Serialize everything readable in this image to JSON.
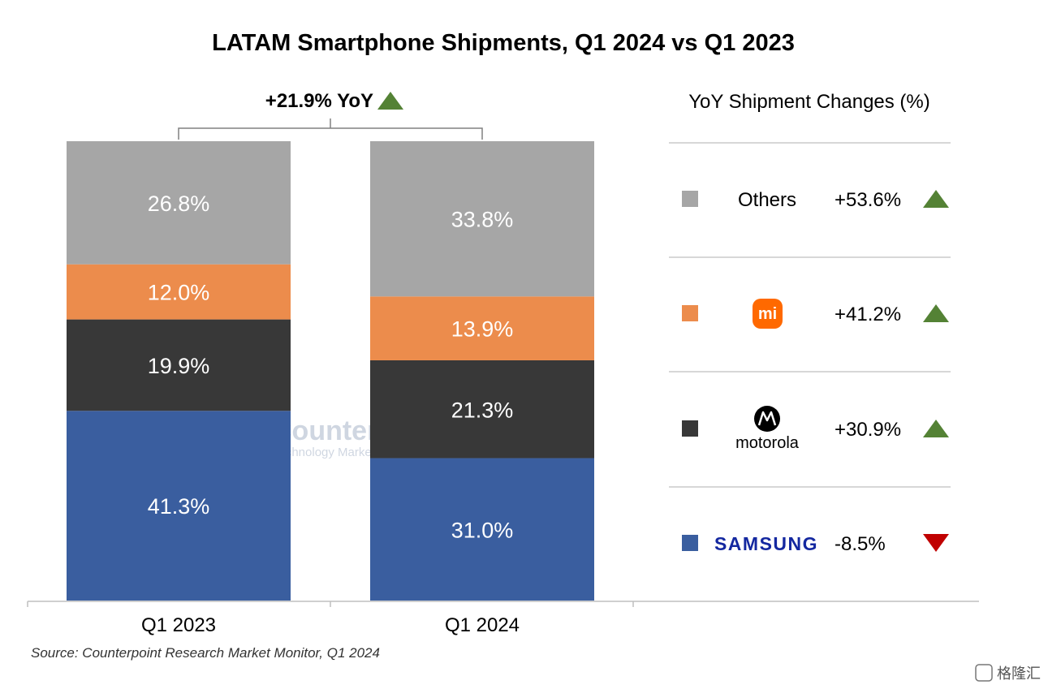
{
  "chart_data": {
    "type": "bar",
    "stacked": true,
    "percent_stacked": true,
    "title": "LATAM Smartphone Shipments, Q1 2024 vs Q1 2023",
    "categories": [
      "Q1 2023",
      "Q1 2024"
    ],
    "series": [
      {
        "name": "Samsung",
        "color": "#3a5e9f",
        "values": [
          41.3,
          31.0
        ],
        "labels": [
          "41.3%",
          "31.0%"
        ]
      },
      {
        "name": "Motorola",
        "color": "#383838",
        "values": [
          19.9,
          21.3
        ],
        "labels": [
          "19.9%",
          "21.3%"
        ]
      },
      {
        "name": "Xiaomi",
        "color": "#ec8c4c",
        "values": [
          12.0,
          13.9
        ],
        "labels": [
          "12.0%",
          "13.9%"
        ]
      },
      {
        "name": "Others",
        "color": "#a6a6a6",
        "values": [
          26.8,
          33.8
        ],
        "labels": [
          "26.8%",
          "33.8%"
        ]
      }
    ],
    "ylim": [
      0,
      100
    ],
    "xlabel": "",
    "ylabel": "",
    "yoy_total": "+21.9% YoY",
    "legend_title": "YoY Shipment Changes (%)",
    "legend": [
      {
        "name": "Others",
        "logo": "text",
        "color": "#a6a6a6",
        "change": "+53.6%",
        "direction": "up"
      },
      {
        "name": "Xiaomi",
        "logo": "mi",
        "logo_text": "mi",
        "color": "#ec8c4c",
        "change": "+41.2%",
        "direction": "up"
      },
      {
        "name": "Motorola",
        "logo": "motorola",
        "logo_text": "motorola",
        "color": "#383838",
        "change": "+30.9%",
        "direction": "up"
      },
      {
        "name": "Samsung",
        "logo": "samsung",
        "logo_text": "SAMSUNG",
        "color": "#3a5e9f",
        "change": "-8.5%",
        "direction": "down"
      }
    ],
    "source": "Source: Counterpoint Research Market Monitor, Q1 2024",
    "watermark": {
      "main": "Counterpoint",
      "sub": "Technology Market Research"
    },
    "footer_mark": "格隆汇",
    "colors": {
      "up": "#548235",
      "down": "#c00000"
    }
  }
}
